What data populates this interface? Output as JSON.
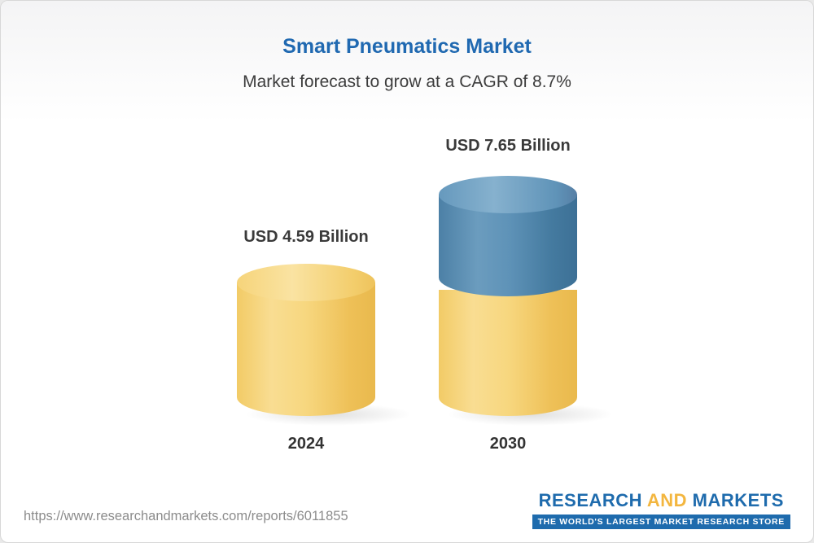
{
  "title": "Smart Pneumatics Market",
  "subtitle": "Market forecast to grow at a CAGR of 8.7%",
  "chart_data": {
    "type": "bar",
    "title": "Smart Pneumatics Market",
    "subtitle": "Market forecast to grow at a CAGR of 8.7%",
    "categories": [
      "2024",
      "2030"
    ],
    "values": [
      4.59,
      7.65
    ],
    "value_labels": [
      "USD 4.59 Billion",
      "USD 7.65 Billion"
    ],
    "unit": "USD Billion",
    "cagr_percent": 8.7,
    "ylim": [
      0,
      8
    ],
    "grid": false,
    "legend": "none",
    "bar_style": "3d-cylinder",
    "colors": {
      "base_segment": "#F3CE6B",
      "growth_segment": "#4C80A6",
      "title_text": "#2069B1",
      "label_text": "#3A3A3A"
    }
  },
  "footer": {
    "url": "https://www.researchandmarkets.com/reports/6011855",
    "logo": {
      "research": "RESEARCH",
      "and": "AND",
      "markets": "MARKETS",
      "tagline": "THE WORLD'S LARGEST MARKET RESEARCH STORE"
    }
  }
}
